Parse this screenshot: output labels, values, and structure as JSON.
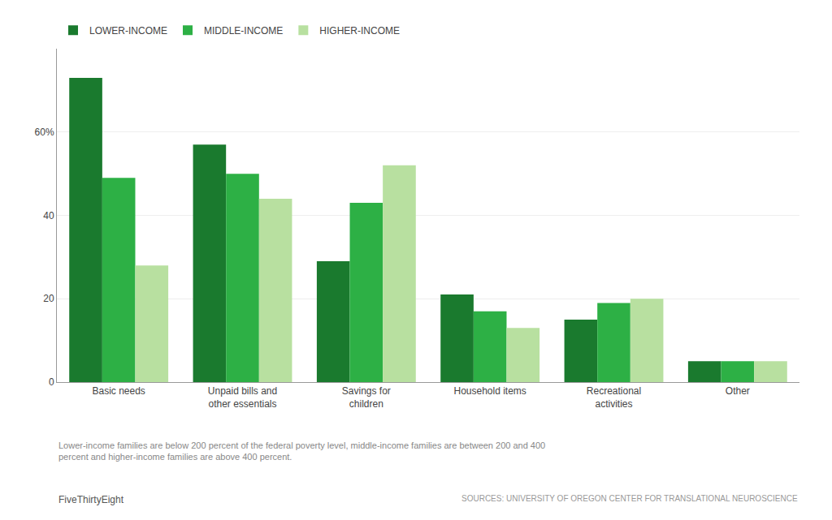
{
  "chart_data": {
    "type": "bar",
    "categories": [
      "Basic needs",
      "Unpaid bills and\nother essentials",
      "Savings for\nchildren",
      "Household items",
      "Recreational\nactivities",
      "Other"
    ],
    "series": [
      {
        "name": "LOWER-INCOME",
        "color": "#1a7a2e",
        "values": [
          73,
          57,
          29,
          21,
          15,
          5
        ]
      },
      {
        "name": "MIDDLE-INCOME",
        "color": "#2db045",
        "values": [
          49,
          50,
          43,
          17,
          19,
          5
        ]
      },
      {
        "name": "HIGHER-INCOME",
        "color": "#b8e0a0",
        "values": [
          28,
          44,
          52,
          13,
          20,
          5
        ]
      }
    ],
    "ylim": [
      0,
      80
    ],
    "yticks": [
      0,
      20,
      40,
      {
        "value": 60,
        "label": "60%"
      }
    ],
    "grid": true,
    "legend": "top left",
    "annotations": [
      "Lower-income families are below 200 percent of the federal poverty level, middle-income families are between 200 and 400\npercent and higher-income families are above 400 percent.",
      "FiveThirtyEight",
      "SOURCES: UNIVERSITY OF OREGON CENTER FOR TRANSLATIONAL NEUROSCIENCE"
    ]
  }
}
